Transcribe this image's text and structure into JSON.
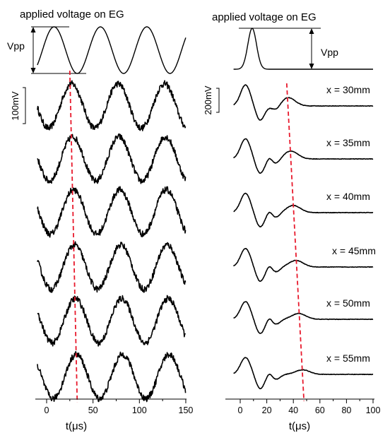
{
  "chart_data": [
    {
      "type": "line",
      "panel": "left",
      "title": "applied voltage on EG",
      "reference_label": "Vpp",
      "scale_bar_label": "100mV",
      "xlabel": "t(μs)",
      "xlim": [
        -10,
        150
      ],
      "xticks": [
        0,
        50,
        100,
        150
      ],
      "reference": {
        "kind": "sine",
        "period_us": 50,
        "peak_at_us": 8
      },
      "traces": [
        {
          "peak_time_us": 27,
          "period_us": 50,
          "amplitude_mV": 55,
          "noise_mV": 8
        },
        {
          "peak_time_us": 28,
          "period_us": 50,
          "amplitude_mV": 55,
          "noise_mV": 8
        },
        {
          "peak_time_us": 29,
          "period_us": 50,
          "amplitude_mV": 55,
          "noise_mV": 8
        },
        {
          "peak_time_us": 30,
          "period_us": 50,
          "amplitude_mV": 55,
          "noise_mV": 8
        },
        {
          "peak_time_us": 31,
          "period_us": 50,
          "amplitude_mV": 55,
          "noise_mV": 8
        },
        {
          "peak_time_us": 32,
          "period_us": 50,
          "amplitude_mV": 55,
          "noise_mV": 8
        }
      ],
      "marker": {
        "style": "red dashed",
        "from_us": 25,
        "to_us": 33
      }
    },
    {
      "type": "line",
      "panel": "right",
      "title": "applied voltage on EG",
      "reference_label": "Vpp",
      "scale_bar_label": "200mV",
      "xlabel": "t(μs)",
      "xlim": [
        -5,
        100
      ],
      "xticks": [
        0,
        20,
        40,
        60,
        80,
        100
      ],
      "reference": {
        "kind": "pulse",
        "center_us": 9,
        "width_us": 12
      },
      "traces": [
        {
          "label": "x = 30mm",
          "wave_peak_time_us": 36,
          "wave_amplitude_mV": 70
        },
        {
          "label": "x = 35mm",
          "wave_peak_time_us": 38,
          "wave_amplitude_mV": 65
        },
        {
          "label": "x = 40mm",
          "wave_peak_time_us": 40,
          "wave_amplitude_mV": 60
        },
        {
          "label": "x = 45mm",
          "wave_peak_time_us": 42,
          "wave_amplitude_mV": 55
        },
        {
          "label": "x = 50mm",
          "wave_peak_time_us": 44,
          "wave_amplitude_mV": 48
        },
        {
          "label": "x = 55mm",
          "wave_peak_time_us": 47,
          "wave_amplitude_mV": 38
        }
      ],
      "marker": {
        "style": "red dashed",
        "from_us": 35,
        "to_us": 48
      }
    }
  ]
}
